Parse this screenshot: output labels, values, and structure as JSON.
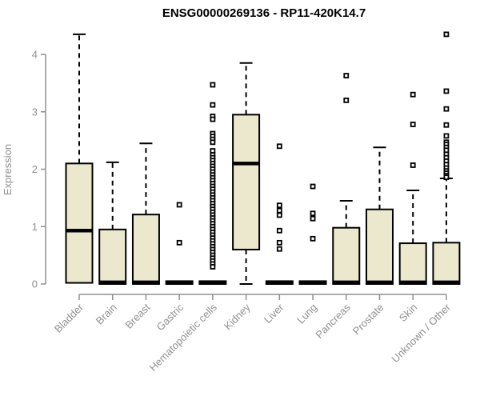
{
  "page": {
    "background": "#ffffff"
  },
  "chart_data": {
    "type": "boxplot",
    "title": "ENSG00000269136 - RP11-420K14.7",
    "xlabel": "",
    "ylabel": "Expression",
    "ylim": [
      0,
      4.4
    ],
    "yticks": [
      0,
      1,
      2,
      3,
      4
    ],
    "grid": false,
    "legend": "none",
    "marker_style": "open-square",
    "colors": {
      "box_fill": "#ece8cd",
      "box_stroke": "#000000",
      "median": "#000000",
      "whisker": "#000000",
      "axis": "#8f8f8f",
      "tick_text": "#909090",
      "title_text": "#000000",
      "background": "#ffffff"
    },
    "categories": [
      "Bladder",
      "Brain",
      "Breast",
      "Gastric",
      "Hematopoietic cells",
      "Kidney",
      "Liver",
      "Lung",
      "Pancreas",
      "Prostate",
      "Skin",
      "Unknown / Other"
    ],
    "series": [
      {
        "category": "Bladder",
        "whisker_low": null,
        "q1": 0.02,
        "median": 0.93,
        "q3": 2.1,
        "whisker_high": 4.35,
        "outliers": []
      },
      {
        "category": "Brain",
        "whisker_low": null,
        "q1": 0.0,
        "median": 0.03,
        "q3": 0.95,
        "whisker_high": 2.12,
        "outliers": []
      },
      {
        "category": "Breast",
        "whisker_low": null,
        "q1": 0.0,
        "median": 0.03,
        "q3": 1.21,
        "whisker_high": 2.45,
        "outliers": []
      },
      {
        "category": "Gastric",
        "whisker_low": null,
        "q1": 0.0,
        "median": 0.02,
        "q3": 0.05,
        "whisker_high": null,
        "outliers": [
          1.38,
          0.72
        ]
      },
      {
        "category": "Hematopoietic cells",
        "whisker_low": null,
        "q1": 0.0,
        "median": 0.02,
        "q3": 0.05,
        "whisker_high": null,
        "outliers": [
          3.47,
          3.12,
          2.92,
          2.87,
          2.62,
          2.57,
          2.52,
          2.47,
          2.32,
          2.25,
          2.2,
          2.15,
          2.1,
          2.05,
          2.0,
          1.95,
          1.9,
          1.85,
          1.8,
          1.75,
          1.7,
          1.65,
          1.6,
          1.55,
          1.5,
          1.45,
          1.4,
          1.35,
          1.3,
          1.25,
          1.2,
          1.15,
          1.1,
          1.05,
          1.0,
          0.95,
          0.9,
          0.85,
          0.8,
          0.75,
          0.7,
          0.65,
          0.6,
          0.55,
          0.5,
          0.45,
          0.4,
          0.35,
          0.3
        ]
      },
      {
        "category": "Kidney",
        "whisker_low": 0.0,
        "q1": 0.6,
        "median": 2.1,
        "q3": 2.95,
        "whisker_high": 3.85,
        "outliers": []
      },
      {
        "category": "Liver",
        "whisker_low": null,
        "q1": 0.0,
        "median": 0.02,
        "q3": 0.05,
        "whisker_high": null,
        "outliers": [
          2.4,
          1.37,
          1.28,
          1.2,
          0.93,
          0.72,
          0.61
        ]
      },
      {
        "category": "Lung",
        "whisker_low": null,
        "q1": 0.0,
        "median": 0.02,
        "q3": 0.05,
        "whisker_high": null,
        "outliers": [
          1.7,
          1.23,
          1.14,
          0.79
        ]
      },
      {
        "category": "Pancreas",
        "whisker_low": null,
        "q1": 0.0,
        "median": 0.03,
        "q3": 0.98,
        "whisker_high": 1.45,
        "outliers": [
          3.63,
          3.2
        ]
      },
      {
        "category": "Prostate",
        "whisker_low": null,
        "q1": 0.0,
        "median": 0.03,
        "q3": 1.3,
        "whisker_high": 2.38,
        "outliers": []
      },
      {
        "category": "Skin",
        "whisker_low": null,
        "q1": 0.0,
        "median": 0.03,
        "q3": 0.71,
        "whisker_high": 1.63,
        "outliers": [
          3.3,
          2.78,
          2.07
        ]
      },
      {
        "category": "Unknown / Other",
        "whisker_low": null,
        "q1": 0.0,
        "median": 0.03,
        "q3": 0.72,
        "whisker_high": 1.84,
        "outliers": [
          4.35,
          3.36,
          3.05,
          2.77,
          2.58,
          2.47,
          2.43,
          2.38,
          2.33,
          2.26,
          2.2,
          2.14,
          2.08,
          2.02,
          1.97,
          1.93,
          1.89,
          1.86
        ]
      }
    ]
  }
}
